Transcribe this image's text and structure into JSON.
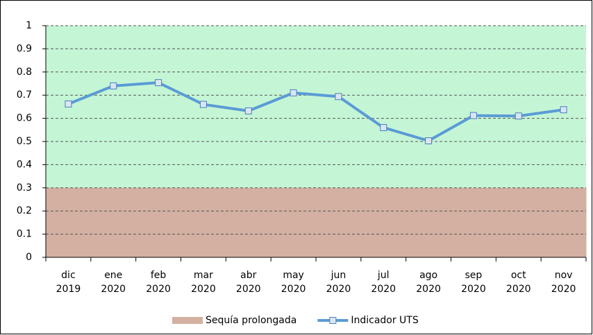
{
  "chart_data": {
    "type": "line",
    "categories": [
      "dic 2019",
      "ene 2020",
      "feb 2020",
      "mar 2020",
      "abr 2020",
      "may 2020",
      "jun 2020",
      "jul 2020",
      "ago 2020",
      "sep 2020",
      "oct 2020",
      "nov 2020"
    ],
    "series": [
      {
        "name": "Sequía prolongada",
        "type": "area",
        "color": "#d4b0a2",
        "values": [
          0.3,
          0.3,
          0.3,
          0.3,
          0.3,
          0.3,
          0.3,
          0.3,
          0.3,
          0.3,
          0.3,
          0.3
        ]
      },
      {
        "name": "Indicador UTS",
        "type": "line",
        "color": "#5b9bd5",
        "values": [
          0.662,
          0.74,
          0.754,
          0.66,
          0.632,
          0.71,
          0.694,
          0.56,
          0.503,
          0.612,
          0.61,
          0.637
        ]
      }
    ],
    "ylim": [
      0,
      1
    ],
    "yticks": [
      0,
      0.1,
      0.2,
      0.3,
      0.4,
      0.5,
      0.6,
      0.7,
      0.8,
      0.9,
      1
    ],
    "grid": true,
    "plot_background": "#c4f6d6",
    "legend": "bottom"
  }
}
